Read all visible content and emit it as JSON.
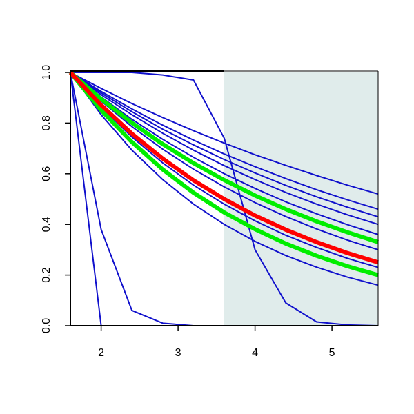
{
  "chart_data": {
    "type": "line",
    "x": [
      1.6,
      2.0,
      2.4,
      2.8,
      3.2,
      3.6,
      4.0,
      4.4,
      4.8,
      5.2,
      5.6
    ],
    "xlim": [
      1.6,
      5.6
    ],
    "xticks": [
      2,
      3,
      4,
      5
    ],
    "ylim": [
      0,
      1
    ],
    "yticks": [
      {
        "value": 0,
        "label": "0.0"
      },
      {
        "value": 0.2,
        "label": "0.2"
      },
      {
        "value": 0.4,
        "label": "0.4"
      },
      {
        "value": 0.6,
        "label": "0.6"
      },
      {
        "value": 0.8,
        "label": "0.8"
      },
      {
        "value": 1,
        "label": "1.0"
      }
    ],
    "shade": [
      3.6,
      5.6
    ],
    "shade_color": "#e0eceb",
    "series": [
      {
        "color": "#1010cc",
        "values": [
          1,
          0.937,
          0.877,
          0.822,
          0.77,
          0.721,
          0.675,
          0.633,
          0.593,
          0.555,
          0.52
        ]
      },
      {
        "color": "#1010cc",
        "values": [
          1,
          0.925,
          0.856,
          0.792,
          0.733,
          0.678,
          0.628,
          0.581,
          0.537,
          0.497,
          0.46
        ]
      },
      {
        "color": "#1010cc",
        "values": [
          1,
          0.919,
          0.845,
          0.776,
          0.714,
          0.656,
          0.603,
          0.554,
          0.509,
          0.468,
          0.43
        ]
      },
      {
        "color": "#1010cc",
        "values": [
          1,
          0.912,
          0.833,
          0.76,
          0.693,
          0.632,
          0.577,
          0.526,
          0.48,
          0.438,
          0.4
        ]
      },
      {
        "color": "#1010cc",
        "values": [
          1,
          0.903,
          0.815,
          0.736,
          0.665,
          0.6,
          0.542,
          0.489,
          0.442,
          0.399,
          0.36
        ]
      },
      {
        "color": "#1010cc",
        "values": [
          1,
          0.887,
          0.786,
          0.697,
          0.618,
          0.548,
          0.486,
          0.431,
          0.382,
          0.338,
          0.3
        ]
      },
      {
        "color": "#1010cc",
        "values": [
          1,
          0.863,
          0.745,
          0.643,
          0.555,
          0.48,
          0.414,
          0.357,
          0.309,
          0.266,
          0.23
        ]
      },
      {
        "color": "#1010cc",
        "values": [
          1,
          0.833,
          0.693,
          0.577,
          0.48,
          0.4,
          0.333,
          0.277,
          0.231,
          0.192,
          0.16
        ]
      },
      {
        "color": "#1010cc",
        "values": [
          1,
          1,
          1,
          0.99,
          0.97,
          0.74,
          0.3,
          0.09,
          0.015,
          0.003,
          0
        ]
      },
      {
        "color": "#1010cc",
        "values": [
          1,
          0.38,
          0.06,
          0.01,
          0,
          0,
          0,
          0,
          0,
          0,
          0
        ]
      },
      {
        "color": "#1010cc",
        "values": [
          1,
          0,
          0,
          0,
          0,
          0,
          0,
          0,
          0,
          0,
          0
        ]
      },
      {
        "color": "#00ee00",
        "width": 6,
        "values": [
          1,
          0.895,
          0.801,
          0.717,
          0.642,
          0.575,
          0.514,
          0.46,
          0.412,
          0.369,
          0.33
        ]
      },
      {
        "color": "#00ee00",
        "width": 6,
        "values": [
          1,
          0.851,
          0.725,
          0.617,
          0.525,
          0.447,
          0.381,
          0.324,
          0.276,
          0.235,
          0.2
        ]
      },
      {
        "color": "#ff0000",
        "width": 6,
        "values": [
          1,
          0.871,
          0.758,
          0.66,
          0.574,
          0.5,
          0.435,
          0.379,
          0.33,
          0.287,
          0.25
        ]
      }
    ]
  }
}
